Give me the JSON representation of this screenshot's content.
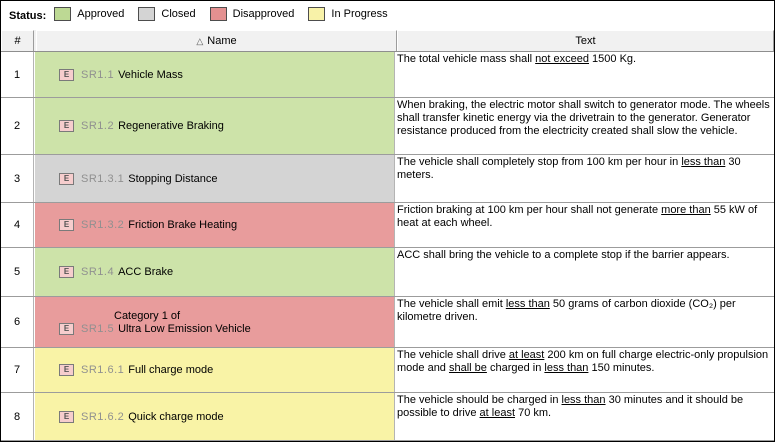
{
  "legend": {
    "label": "Status:",
    "items": [
      {
        "status": "approved",
        "label": "Approved"
      },
      {
        "status": "closed",
        "label": "Closed"
      },
      {
        "status": "disapproved",
        "label": "Disapproved"
      },
      {
        "status": "in_progress",
        "label": "In Progress"
      }
    ]
  },
  "colors": {
    "row": {
      "approved": "#cde3a9",
      "closed": "#d4d4d4",
      "disapproved": "#e89c9c",
      "in_progress": "#f9f3a6"
    },
    "chip": {
      "approved": "#bdd994",
      "closed": "#d4d4d4",
      "disapproved": "#e39090",
      "in_progress": "#f8f2a8"
    }
  },
  "table": {
    "columns": {
      "num": "#",
      "name": "Name",
      "text": "Text"
    },
    "sort_icon_glyph": "△",
    "req_icon_glyph": "E",
    "rows": [
      {
        "num": "1",
        "status": "approved",
        "id": "SR1.1",
        "name": "Vehicle Mass",
        "text": [
          {
            "t": "The total vehicle mass shall "
          },
          {
            "t": "not exceed",
            "u": true
          },
          {
            "t": " 1500 Kg."
          }
        ]
      },
      {
        "num": "2",
        "status": "approved",
        "id": "SR1.2",
        "name": "Regenerative Braking",
        "text": [
          {
            "t": "When braking, the electric motor shall switch to generator mode. The wheels shall transfer kinetic energy via the drivetrain to the generator. Generator resistance produced from the electricity created shall slow the vehicle."
          }
        ]
      },
      {
        "num": "3",
        "status": "closed",
        "id": "SR1.3.1",
        "name": "Stopping Distance",
        "text": [
          {
            "t": "The vehicle shall completely stop from 100 km per hour in "
          },
          {
            "t": "less than",
            "u": true
          },
          {
            "t": " 30 meters."
          }
        ]
      },
      {
        "num": "4",
        "status": "disapproved",
        "id": "SR1.3.2",
        "name": "Friction Brake Heating",
        "text": [
          {
            "t": "Friction braking at 100 km per hour shall not generate "
          },
          {
            "t": "more than",
            "u": true
          },
          {
            "t": " 55 kW of heat at each wheel."
          }
        ]
      },
      {
        "num": "5",
        "status": "approved",
        "id": "SR1.4",
        "name": "ACC Brake",
        "text": [
          {
            "t": "ACC shall bring the vehicle to a complete stop if the barrier appears."
          }
        ]
      },
      {
        "num": "6",
        "status": "disapproved",
        "id": "SR1.5",
        "name": "Ultra Low Emission Vehicle",
        "prefix": "Category 1 of",
        "text": [
          {
            "t": "The vehicle shall emit "
          },
          {
            "t": "less than",
            "u": true
          },
          {
            "t": " 50 grams of carbon dioxide (CO₂) per kilometre driven."
          }
        ]
      },
      {
        "num": "7",
        "status": "in_progress",
        "id": "SR1.6.1",
        "name": "Full charge mode",
        "text": [
          {
            "t": "The vehicle shall drive "
          },
          {
            "t": "at least",
            "u": true
          },
          {
            "t": " 200 km on full charge electric-only propulsion mode and "
          },
          {
            "t": "shall be",
            "u": true
          },
          {
            "t": " charged in "
          },
          {
            "t": "less than",
            "u": true
          },
          {
            "t": " 150 minutes."
          }
        ]
      },
      {
        "num": "8",
        "status": "in_progress",
        "id": "SR1.6.2",
        "name": "Quick charge mode",
        "text": [
          {
            "t": "The vehicle should be charged in "
          },
          {
            "t": "less than",
            "u": true
          },
          {
            "t": " 30 minutes and it should be possible to drive "
          },
          {
            "t": "at least",
            "u": true
          },
          {
            "t": " 70 km."
          }
        ]
      }
    ]
  }
}
